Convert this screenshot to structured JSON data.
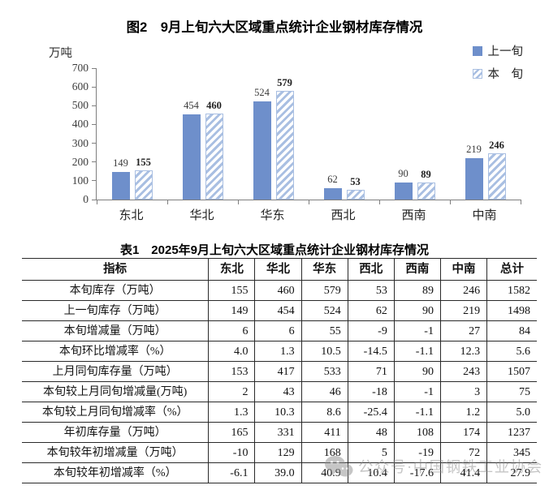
{
  "chart_data": {
    "type": "bar",
    "title": "图2　9月上旬六大区域重点统计企业钢材库存情况",
    "ylabel": "万吨",
    "categories": [
      "东北",
      "华北",
      "华东",
      "西北",
      "西南",
      "中南"
    ],
    "series": [
      {
        "name": "上一旬",
        "values": [
          149,
          454,
          524,
          62,
          90,
          219
        ]
      },
      {
        "name": "本旬",
        "values": [
          155,
          460,
          579,
          53,
          89,
          246
        ]
      }
    ],
    "legend": [
      "上一旬",
      "本　旬"
    ],
    "legend_position": "top-right",
    "ylim": [
      0,
      700
    ],
    "yticks": [
      0,
      100,
      200,
      300,
      400,
      500,
      600,
      700
    ],
    "grid": false
  },
  "table": {
    "title": "表1　2025年9月上旬六大区域重点统计企业钢材库存情况",
    "columns": [
      "指标",
      "东北",
      "华北",
      "华东",
      "西北",
      "西南",
      "中南",
      "总计"
    ],
    "rows": [
      [
        "本旬库存（万吨）",
        "155",
        "460",
        "579",
        "53",
        "89",
        "246",
        "1582"
      ],
      [
        "上一旬库存（万吨）",
        "149",
        "454",
        "524",
        "62",
        "90",
        "219",
        "1498"
      ],
      [
        "本旬增减量（万吨）",
        "6",
        "6",
        "55",
        "-9",
        "-1",
        "27",
        "84"
      ],
      [
        "本旬环比增减率（%）",
        "4.0",
        "1.3",
        "10.5",
        "-14.5",
        "-1.1",
        "12.3",
        "5.6"
      ],
      [
        "上月同旬库存量（万吨）",
        "153",
        "417",
        "533",
        "71",
        "90",
        "243",
        "1507"
      ],
      [
        "本旬较上月同旬增减量(万吨)",
        "2",
        "43",
        "46",
        "-18",
        "-1",
        "3",
        "75"
      ],
      [
        "本旬较上月同旬增减率（%）",
        "1.3",
        "10.3",
        "8.6",
        "-25.4",
        "-1.1",
        "1.2",
        "5.0"
      ],
      [
        "年初库存量（万吨）",
        "165",
        "331",
        "411",
        "48",
        "108",
        "174",
        "1237"
      ],
      [
        "本旬较年初增减量（万吨）",
        "-10",
        "129",
        "168",
        "5",
        "-19",
        "72",
        "345"
      ],
      [
        "本旬较年初增减率（%）",
        "-6.1",
        "39.0",
        "40.9",
        "10.4",
        "-17.6",
        "41.4",
        "27.9"
      ]
    ]
  },
  "watermark": {
    "icon": "wechat-icon",
    "text": "公众号·中国钢铁工业协会"
  },
  "colors": {
    "bar_solid": "#6e8fcb",
    "bar_hatch": "#a9bfe2",
    "axis": "#7f7f7f"
  }
}
